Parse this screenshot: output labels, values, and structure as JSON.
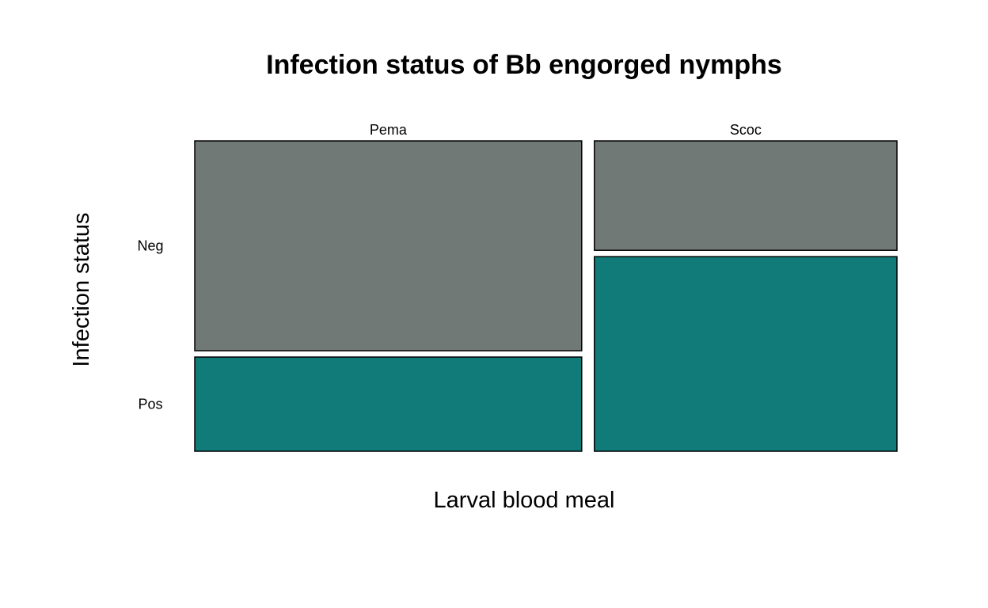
{
  "chart_data": {
    "type": "mosaic",
    "title": "Infection status of Bb engorged nymphs",
    "xlabel": "Larval blood meal",
    "ylabel": "Infection status",
    "categories": [
      "Pema",
      "Scoc"
    ],
    "category_share": [
      0.55,
      0.43
    ],
    "levels": [
      "Neg",
      "Pos"
    ],
    "series": [
      {
        "name": "Neg",
        "values": [
          0.69,
          0.36
        ]
      },
      {
        "name": "Pos",
        "values": [
          0.31,
          0.64
        ]
      }
    ],
    "colors": {
      "Neg": "#717977",
      "Pos": "#117b79"
    },
    "grid": false,
    "legend": "none"
  }
}
